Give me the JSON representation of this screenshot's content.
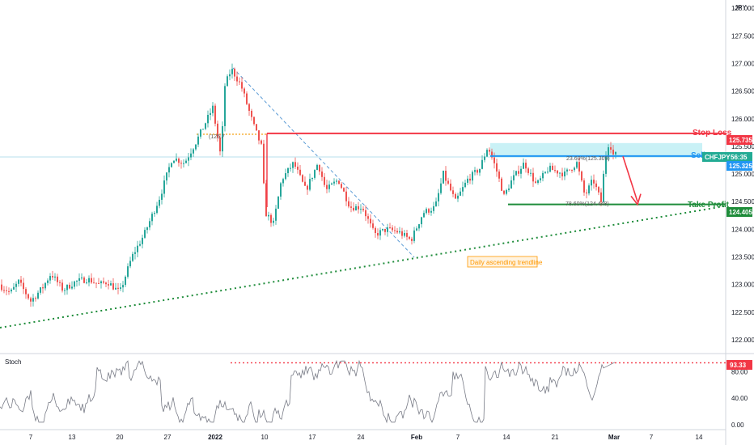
{
  "chart_data": [
    {
      "type": "candlestick",
      "symbol": "CHFJPY",
      "currency_label": "JPY",
      "y_ticks": [
        122.0,
        122.5,
        123.0,
        123.5,
        124.0,
        124.5,
        125.0,
        125.5,
        126.0,
        126.5,
        127.0,
        127.5,
        128.0
      ],
      "y_tick_labels": [
        "122.000",
        "122.500",
        "123.000",
        "123.500",
        "124.000",
        "124.500",
        "125.000",
        "125.500",
        "126.000",
        "126.500",
        "127.000",
        "127.500",
        "128.000"
      ],
      "ylim": [
        121.75,
        128.15
      ],
      "x_tick_labels": [
        "7",
        "13",
        "20",
        "27",
        "2022",
        "10",
        "17",
        "24",
        "Feb",
        "7",
        "14",
        "21",
        "Mar",
        "7",
        "14"
      ],
      "price_path": [
        [
          0,
          123.0
        ],
        [
          15,
          122.85
        ],
        [
          25,
          123.05
        ],
        [
          40,
          122.7
        ],
        [
          55,
          122.95
        ],
        [
          65,
          123.2
        ],
        [
          80,
          122.9
        ],
        [
          95,
          123.05
        ],
        [
          110,
          123.1
        ],
        [
          125,
          123.0
        ],
        [
          135,
          123.05
        ],
        [
          150,
          122.85
        ],
        [
          165,
          123.5
        ],
        [
          180,
          123.9
        ],
        [
          200,
          124.6
        ],
        [
          215,
          125.3
        ],
        [
          230,
          125.2
        ],
        [
          245,
          125.6
        ],
        [
          255,
          125.9
        ],
        [
          265,
          126.2
        ],
        [
          275,
          125.3
        ],
        [
          280,
          126.6
        ],
        [
          288,
          126.9
        ],
        [
          300,
          126.6
        ],
        [
          315,
          125.9
        ],
        [
          325,
          125.5
        ],
        [
          330,
          124.3
        ],
        [
          340,
          124.1
        ],
        [
          350,
          124.9
        ],
        [
          365,
          125.2
        ],
        [
          380,
          124.7
        ],
        [
          395,
          125.2
        ],
        [
          405,
          124.7
        ],
        [
          420,
          124.9
        ],
        [
          435,
          124.4
        ],
        [
          450,
          124.4
        ],
        [
          465,
          123.9
        ],
        [
          480,
          124.0
        ],
        [
          495,
          123.95
        ],
        [
          510,
          123.8
        ],
        [
          525,
          124.3
        ],
        [
          540,
          124.4
        ],
        [
          550,
          125.0
        ],
        [
          565,
          124.5
        ],
        [
          580,
          124.9
        ],
        [
          595,
          125.1
        ],
        [
          605,
          125.5
        ],
        [
          615,
          125.1
        ],
        [
          625,
          124.6
        ],
        [
          635,
          124.9
        ],
        [
          650,
          125.2
        ],
        [
          665,
          124.8
        ],
        [
          680,
          125.1
        ],
        [
          700,
          125.0
        ],
        [
          715,
          125.2
        ],
        [
          725,
          124.6
        ],
        [
          735,
          124.9
        ],
        [
          745,
          124.5
        ],
        [
          750,
          125.3
        ],
        [
          755,
          125.6
        ],
        [
          760,
          125.35
        ]
      ],
      "stop_loss": {
        "label": "Stop Loss",
        "value": 125.735,
        "value_label": "125.735",
        "color": "#f23645"
      },
      "sell": {
        "label": "Sell",
        "value": 125.325,
        "value_label": "125.325",
        "color": "#2196f3"
      },
      "take_profit": {
        "label": "Take Profit",
        "value": 124.405,
        "value_label": "124.405",
        "color": "#1e8c3a"
      },
      "current_price": {
        "symbol": "CHFJPY",
        "countdown": "56:35",
        "color": "#22ab94"
      },
      "fib_labels": [
        {
          "text": "23.60%(125.309)"
        },
        {
          "text": "78.60%(124.448)"
        },
        {
          "text": "(125.7"
        }
      ],
      "annotation": {
        "text": "Daily ascending trendline",
        "color": "#ff9800"
      },
      "bull_color": "#26a69a",
      "bear_color": "#ef5350"
    },
    {
      "type": "line",
      "title": "Stoch",
      "y_ticks": [
        0.0,
        40.0,
        80.0
      ],
      "y_tick_labels": [
        "0.00",
        "40.00",
        "80.00"
      ],
      "ylim": [
        -6,
        106
      ],
      "last_value": 93.33,
      "last_value_label": "93.33",
      "level_color": "#f23645"
    }
  ]
}
